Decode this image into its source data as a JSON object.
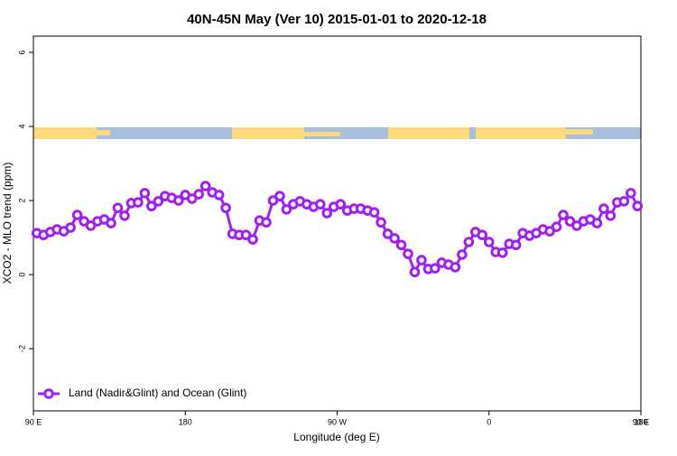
{
  "chart_data": {
    "type": "line",
    "title": "40N-45N May (Ver 10)   2015-01-01 to 2020-12-18",
    "x_label": "Longitude (deg E)",
    "y_label": "XCO2 - MLO trend (ppm)",
    "xlim": [
      90,
      450
    ],
    "xticks": [
      {
        "value": 90,
        "label": "90 E"
      },
      180,
      {
        "value": 270,
        "label": "90 W"
      },
      {
        "value": 360,
        "label": "0"
      },
      {
        "value": 450,
        "label": "90 E"
      },
      {
        "value": 540,
        "label": "180"
      }
    ],
    "ylim": [
      -3.68,
      6.44
    ],
    "yticks": [
      -2,
      0,
      2,
      4,
      6
    ],
    "legend": "bottomleft",
    "x": [
      92,
      96,
      100,
      104,
      108,
      112,
      116,
      120,
      124,
      128,
      132,
      136,
      140,
      144,
      148,
      152,
      156,
      160,
      164,
      168,
      172,
      176,
      180,
      184,
      188,
      192,
      196,
      200,
      204,
      208,
      212,
      216,
      220,
      224,
      228,
      232,
      236,
      240,
      244,
      248,
      252,
      256,
      260,
      264,
      268,
      272,
      276,
      280,
      284,
      288,
      292,
      296,
      300,
      304,
      308,
      312,
      316,
      320,
      324,
      328,
      332,
      336,
      340,
      344,
      348,
      352,
      356,
      360,
      364,
      368,
      372,
      376,
      380,
      384,
      388,
      392,
      396,
      400,
      404,
      408,
      412,
      416,
      420,
      424,
      428,
      432,
      436,
      440,
      444,
      448
    ],
    "series": [
      {
        "name": "Land (Nadir&Glint) and Ocean (Glint)",
        "color": "#a020f0",
        "values": [
          1.12,
          1.07,
          1.15,
          1.22,
          1.17,
          1.27,
          1.61,
          1.44,
          1.32,
          1.44,
          1.49,
          1.39,
          1.8,
          1.59,
          1.93,
          1.95,
          2.2,
          1.85,
          1.98,
          2.12,
          2.07,
          2.0,
          2.15,
          2.05,
          2.17,
          2.39,
          2.22,
          2.15,
          1.8,
          1.1,
          1.07,
          1.07,
          0.95,
          1.46,
          1.41,
          2.0,
          2.12,
          1.76,
          1.9,
          1.98,
          1.9,
          1.83,
          1.9,
          1.66,
          1.83,
          1.9,
          1.73,
          1.78,
          1.78,
          1.73,
          1.68,
          1.41,
          1.1,
          0.98,
          0.8,
          0.56,
          0.07,
          0.39,
          0.15,
          0.17,
          0.32,
          0.27,
          0.2,
          0.54,
          0.88,
          1.15,
          1.07,
          0.88,
          0.61,
          0.59,
          0.83,
          0.8,
          1.12,
          1.05,
          1.12,
          1.22,
          1.17,
          1.29,
          1.61,
          1.44,
          1.32,
          1.44,
          1.49,
          1.39,
          1.78,
          1.59,
          1.95,
          1.98,
          2.2,
          1.85
        ]
      }
    ]
  }
}
